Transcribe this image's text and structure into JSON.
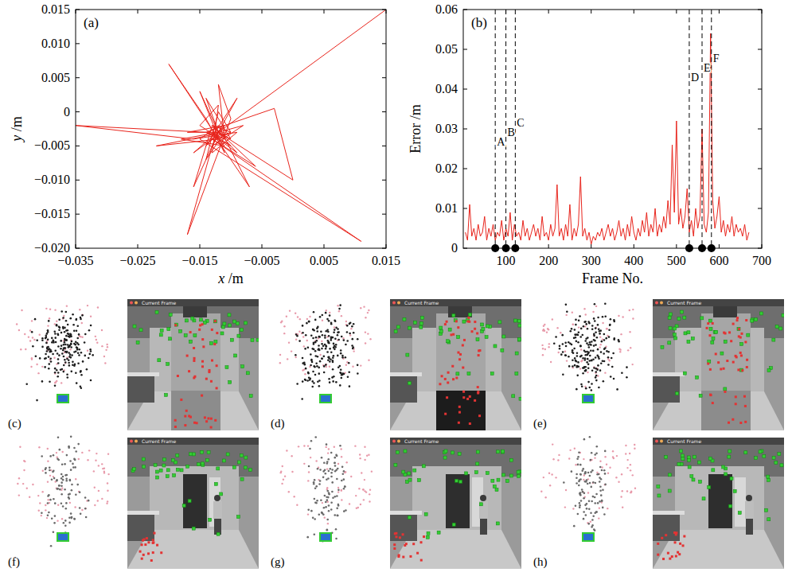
{
  "chart_data": [
    {
      "type": "line",
      "annotation": "(a)",
      "x_label": "x /m",
      "y_label": "y /m",
      "xlim": [
        -0.035,
        0.015
      ],
      "xticks": [
        {
          "value": -0.035,
          "label": "−0.035"
        },
        {
          "value": -0.025,
          "label": "−0.025"
        },
        {
          "value": -0.015,
          "label": "−0.015"
        },
        {
          "value": -0.005,
          "label": "−0.005"
        },
        0.005,
        0.015
      ],
      "ylim": [
        -0.02,
        0.015
      ],
      "yticks": [
        {
          "value": -0.02,
          "label": "−0.020"
        },
        {
          "value": -0.015,
          "label": "−0.015"
        },
        {
          "value": -0.01,
          "label": "−0.010"
        },
        {
          "value": -0.005,
          "label": "−0.005"
        },
        0,
        0.005,
        {
          "value": 0.01,
          "label": "0.010"
        },
        0.015
      ],
      "x": [
        -0.012,
        -0.013,
        -0.011,
        -0.014,
        -0.01,
        -0.015,
        -0.012,
        -0.013,
        -0.009,
        -0.016,
        -0.035,
        -0.014,
        -0.011,
        -0.012,
        -0.01,
        -0.017,
        -0.013,
        -0.008,
        -0.012,
        -0.015,
        -0.011,
        -0.014,
        -0.02,
        -0.012,
        -0.01,
        -0.013,
        -0.006,
        -0.013,
        -0.016,
        -0.011,
        -0.003,
        0.0,
        -0.012,
        -0.014,
        -0.009,
        -0.012,
        -0.018,
        -0.011,
        -0.013,
        -0.007,
        -0.012,
        -0.015,
        0.011,
        -0.013,
        -0.01,
        -0.012,
        -0.014,
        -0.011,
        -0.022,
        -0.012,
        -0.009,
        -0.013,
        -0.016,
        -0.012,
        -0.01,
        -0.014,
        -0.012,
        -0.017,
        -0.011,
        -0.013,
        -0.012,
        0.015
      ],
      "series": [
        {
          "color": "#e8241c",
          "values": [
            -0.003,
            -0.004,
            -0.002,
            -0.003,
            -0.005,
            -0.002,
            0.001,
            -0.006,
            -0.003,
            -0.004,
            -0.002,
            -0.003,
            -0.004,
            0.004,
            -0.001,
            -0.018,
            -0.005,
            -0.002,
            -0.003,
            0.003,
            -0.006,
            -0.001,
            0.007,
            -0.004,
            -0.003,
            -0.002,
            -0.008,
            -0.004,
            -0.006,
            -0.002,
            0.0005,
            -0.01,
            -0.003,
            -0.005,
            0.002,
            -0.003,
            -0.004,
            -0.005,
            -0.003,
            -0.011,
            -0.002,
            -0.004,
            -0.019,
            -0.004,
            -0.003,
            0.0,
            -0.007,
            -0.003,
            -0.005,
            -0.004,
            -0.006,
            -0.002,
            -0.011,
            -0.003,
            -0.004,
            0.002,
            -0.003,
            -0.003,
            -0.002,
            -0.005,
            -0.003,
            0.015
          ]
        }
      ]
    },
    {
      "type": "line",
      "annotation": "(b)",
      "x_label": "Frame No.",
      "y_label": "Error /m",
      "xlim": [
        0,
        700
      ],
      "xticks": [
        100,
        200,
        300,
        400,
        500,
        600,
        700
      ],
      "ylim": [
        0,
        0.06
      ],
      "yticks": [
        0,
        0.01,
        0.02,
        0.03,
        0.04,
        0.05,
        0.06
      ],
      "x": [
        5,
        10,
        15,
        20,
        25,
        30,
        35,
        40,
        45,
        50,
        55,
        60,
        65,
        70,
        75,
        80,
        85,
        90,
        95,
        100,
        105,
        110,
        115,
        120,
        125,
        130,
        135,
        140,
        145,
        150,
        155,
        160,
        165,
        170,
        175,
        180,
        185,
        190,
        195,
        200,
        205,
        210,
        215,
        220,
        225,
        230,
        235,
        240,
        245,
        250,
        255,
        260,
        265,
        270,
        275,
        280,
        285,
        290,
        295,
        300,
        305,
        310,
        315,
        320,
        325,
        330,
        335,
        340,
        345,
        350,
        355,
        360,
        365,
        370,
        375,
        380,
        385,
        390,
        395,
        400,
        405,
        410,
        415,
        420,
        425,
        430,
        435,
        440,
        445,
        450,
        455,
        460,
        465,
        470,
        475,
        480,
        485,
        490,
        495,
        500,
        505,
        510,
        515,
        520,
        525,
        530,
        535,
        540,
        545,
        550,
        555,
        560,
        565,
        570,
        575,
        580,
        585,
        590,
        595,
        600,
        605,
        610,
        615,
        620,
        625,
        630,
        635,
        640,
        645,
        650,
        655,
        660,
        665,
        670
      ],
      "series": [
        {
          "color": "#e8241c",
          "values": [
            0.004,
            0.002,
            0.011,
            0.003,
            0.005,
            0.002,
            0.006,
            0.003,
            0.004,
            0.008,
            0.002,
            0.005,
            0.003,
            0.006,
            0.002,
            0.004,
            0.003,
            0.007,
            0.002,
            0.005,
            0.003,
            0.009,
            0.002,
            0.006,
            0.003,
            0.004,
            0.002,
            0.007,
            0.003,
            0.005,
            0.002,
            0.004,
            0.006,
            0.003,
            0.005,
            0.002,
            0.008,
            0.003,
            0.004,
            0.002,
            0.006,
            0.003,
            0.005,
            0.016,
            0.003,
            0.005,
            0.002,
            0.006,
            0.003,
            0.011,
            0.002,
            0.005,
            0.003,
            0.006,
            0.018,
            0.003,
            0.005,
            0.002,
            0.004,
            0.001,
            0.003,
            0.002,
            0.004,
            0.003,
            0.005,
            0.002,
            0.004,
            0.006,
            0.003,
            0.005,
            0.002,
            0.004,
            0.007,
            0.003,
            0.005,
            0.002,
            0.006,
            0.003,
            0.008,
            0.004,
            0.002,
            0.005,
            0.003,
            0.007,
            0.004,
            0.009,
            0.003,
            0.006,
            0.004,
            0.01,
            0.003,
            0.006,
            0.004,
            0.008,
            0.005,
            0.012,
            0.006,
            0.026,
            0.009,
            0.032,
            0.006,
            0.01,
            0.005,
            0.008,
            0.015,
            0.004,
            0.007,
            0.003,
            0.01,
            0.005,
            0.008,
            0.03,
            0.006,
            0.004,
            0.009,
            0.054,
            0.012,
            0.005,
            0.008,
            0.013,
            0.004,
            0.007,
            0.003,
            0.006,
            0.004,
            0.008,
            0.003,
            0.006,
            0.004,
            0.005,
            0.003,
            0.006,
            0.002,
            0.004
          ]
        }
      ],
      "events": [
        {
          "label": "A",
          "frame": 75
        },
        {
          "label": "B",
          "frame": 100
        },
        {
          "label": "C",
          "frame": 122
        },
        {
          "label": "D",
          "frame": 530
        },
        {
          "label": "E",
          "frame": 560
        },
        {
          "label": "F",
          "frame": 582
        }
      ]
    }
  ],
  "panels": [
    {
      "label": "(c)",
      "window_title": "Current Frame"
    },
    {
      "label": "(d)",
      "window_title": "Current Frame"
    },
    {
      "label": "(e)",
      "window_title": "Current Frame"
    },
    {
      "label": "(f)",
      "window_title": "Current Frame"
    },
    {
      "label": "(g)",
      "window_title": "Current Frame"
    },
    {
      "label": "(h)",
      "window_title": "Current Frame"
    }
  ]
}
